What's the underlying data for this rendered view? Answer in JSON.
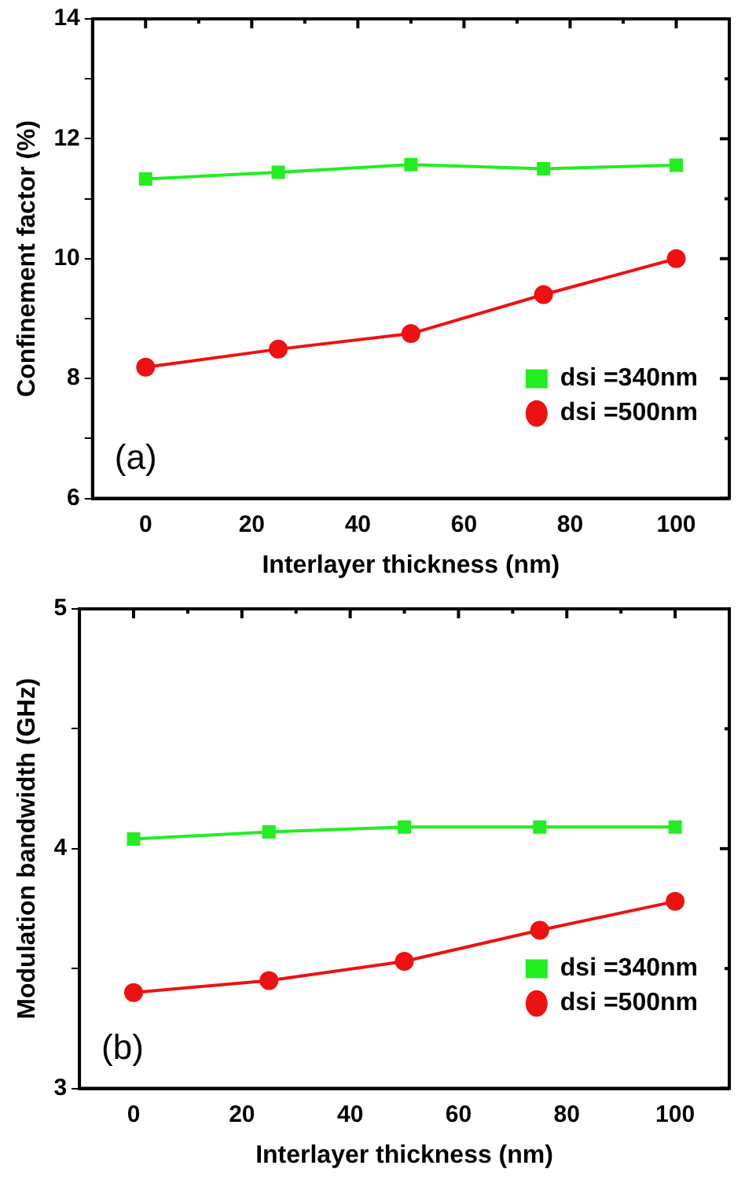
{
  "chart_data": [
    {
      "type": "line",
      "xlabel": "Interlayer thickness (nm)",
      "ylabel": "Confinement factor (%)",
      "annotations": [
        "(a)"
      ],
      "x": [
        0,
        25,
        50,
        75,
        100
      ],
      "series": [
        {
          "name": "dsi =340nm",
          "color": "#22ee22",
          "marker": "square",
          "values": [
            11.33,
            11.44,
            11.57,
            11.5,
            11.56
          ]
        },
        {
          "name": "dsi =500nm",
          "color": "#ee1111",
          "marker": "circle",
          "values": [
            8.19,
            8.49,
            8.75,
            9.4,
            10.0
          ]
        }
      ],
      "xlim": [
        -10,
        110
      ],
      "xticks": [
        0,
        {
          "value": 10,
          "label": null
        },
        20,
        {
          "value": 30,
          "label": null
        },
        40,
        {
          "value": 50,
          "label": null
        },
        60,
        {
          "value": 70,
          "label": null
        },
        80,
        {
          "value": 90,
          "label": null
        },
        100
      ],
      "ylim": [
        6,
        14
      ],
      "yticks": [
        6,
        {
          "value": 7,
          "label": null
        },
        8,
        {
          "value": 9,
          "label": null
        },
        10,
        {
          "value": 11,
          "label": null
        },
        12,
        {
          "value": 13,
          "label": null
        },
        14
      ],
      "legend": "bottom right",
      "grid": false
    },
    {
      "type": "line",
      "xlabel": "Interlayer thickness (nm)",
      "ylabel": "Modulation bandwidth (GHz)",
      "annotations": [
        "(b)"
      ],
      "x": [
        0,
        25,
        50,
        75,
        100
      ],
      "series": [
        {
          "name": "dsi =340nm",
          "color": "#22ee22",
          "marker": "square",
          "values": [
            4.04,
            4.07,
            4.09,
            4.09,
            4.09
          ]
        },
        {
          "name": "dsi =500nm",
          "color": "#ee1111",
          "marker": "circle",
          "values": [
            3.4,
            3.45,
            3.53,
            3.66,
            3.78
          ]
        }
      ],
      "xlim": [
        -10,
        110
      ],
      "xticks": [
        0,
        {
          "value": 10,
          "label": null
        },
        20,
        {
          "value": 30,
          "label": null
        },
        40,
        {
          "value": 50,
          "label": null
        },
        60,
        {
          "value": 70,
          "label": null
        },
        80,
        {
          "value": 90,
          "label": null
        },
        100
      ],
      "ylim": [
        3,
        5
      ],
      "yticks": [
        3,
        {
          "value": 3.5,
          "label": null
        },
        4,
        {
          "value": 4.5,
          "label": null
        },
        5
      ],
      "legend": "bottom right",
      "grid": false
    }
  ]
}
